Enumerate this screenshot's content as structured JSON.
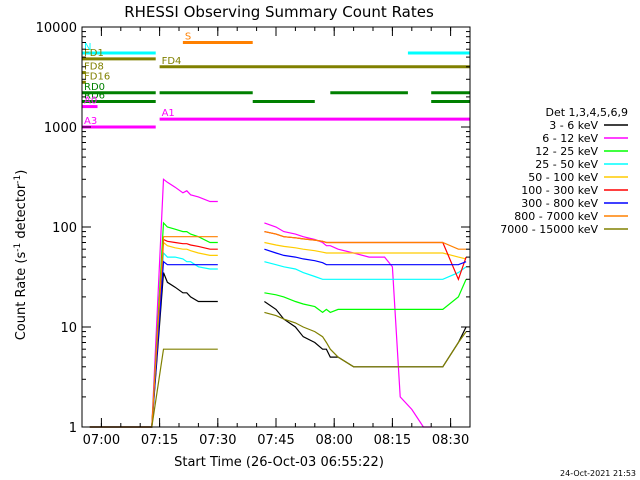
{
  "chart_data": {
    "type": "line",
    "title": "RHESSI Observing Summary Count Rates",
    "xlabel": "Start Time (26-Oct-03 06:55:22)",
    "ylabel_main": "Count Rate (s",
    "ylabel_sup1": "-1",
    "ylabel_mid": " detector",
    "ylabel_sup2": "-1",
    "ylabel_end": ")",
    "yscale": "log",
    "ylim": [
      1,
      10000
    ],
    "xlim_min": [
      0,
      100
    ],
    "x_tick_labels": [
      {
        "t": 5,
        "label": "07:00"
      },
      {
        "t": 20,
        "label": "07:15"
      },
      {
        "t": 35,
        "label": "07:30"
      },
      {
        "t": 50,
        "label": "07:45"
      },
      {
        "t": 65,
        "label": "08:00"
      },
      {
        "t": 80,
        "label": "08:15"
      },
      {
        "t": 95,
        "label": "08:30"
      }
    ],
    "y_tick_labels": [
      {
        "v": 1,
        "label": "1"
      },
      {
        "v": 10,
        "label": "10"
      },
      {
        "v": 100,
        "label": "100"
      },
      {
        "v": 1000,
        "label": "1000"
      },
      {
        "v": 10000,
        "label": "10000"
      }
    ],
    "legend_title": "Det 1,3,4,5,6,9",
    "legend_position": "right",
    "series": [
      {
        "name": "3 - 6 keV",
        "color": "#000000",
        "x": [
          2,
          5,
          9,
          10,
          11,
          12,
          13,
          15,
          18,
          21,
          22,
          24,
          26,
          27,
          28,
          30,
          33,
          35,
          40,
          45,
          47,
          50,
          52,
          55,
          57,
          60,
          62,
          63,
          64,
          66,
          70,
          74,
          78,
          80,
          82,
          85,
          88,
          90,
          93,
          97,
          99
        ],
        "y": [
          1,
          1,
          1,
          1,
          1,
          1,
          1,
          1,
          1,
          35,
          28,
          25,
          22,
          22,
          20,
          18,
          18,
          18,
          null,
          null,
          18,
          15,
          12,
          10,
          8,
          7,
          6,
          6,
          5,
          5,
          4,
          4,
          4,
          4,
          4,
          4,
          4,
          4,
          4,
          7,
          10
        ]
      },
      {
        "name": "6 - 12 keV",
        "color": "#ff00ff",
        "x": [
          2,
          5,
          9,
          10,
          11,
          12,
          13,
          15,
          18,
          21,
          22,
          24,
          26,
          27,
          28,
          30,
          33,
          35,
          40,
          45,
          47,
          50,
          52,
          55,
          57,
          60,
          62,
          63,
          64,
          66,
          70,
          74,
          78,
          80,
          82,
          85,
          88,
          90,
          93,
          97,
          99
        ],
        "y": [
          1,
          1,
          1,
          1,
          1,
          1,
          1,
          1,
          1,
          300,
          280,
          250,
          220,
          230,
          210,
          200,
          180,
          180,
          null,
          null,
          110,
          100,
          90,
          85,
          80,
          75,
          70,
          65,
          65,
          60,
          55,
          50,
          50,
          40,
          2,
          1.5,
          1,
          1,
          null,
          null,
          null
        ]
      },
      {
        "name": "12 - 25 keV",
        "color": "#00ff00",
        "x": [
          2,
          5,
          9,
          10,
          11,
          12,
          13,
          15,
          18,
          21,
          22,
          24,
          26,
          27,
          28,
          30,
          33,
          35,
          40,
          45,
          47,
          50,
          52,
          55,
          57,
          60,
          62,
          63,
          64,
          66,
          70,
          74,
          78,
          80,
          82,
          85,
          88,
          90,
          93,
          97,
          99
        ],
        "y": [
          1,
          1,
          1,
          1,
          1,
          1,
          1,
          1,
          1,
          110,
          100,
          95,
          90,
          90,
          85,
          80,
          70,
          70,
          null,
          null,
          22,
          21,
          20,
          18,
          17,
          16,
          14,
          15,
          14,
          15,
          15,
          15,
          15,
          15,
          15,
          15,
          15,
          15,
          15,
          20,
          30
        ]
      },
      {
        "name": "25 - 50 keV",
        "color": "#00ffff",
        "x": [
          2,
          5,
          9,
          10,
          11,
          12,
          13,
          15,
          18,
          21,
          22,
          24,
          26,
          27,
          28,
          30,
          33,
          35,
          40,
          45,
          47,
          50,
          52,
          55,
          57,
          60,
          62,
          63,
          64,
          66,
          70,
          74,
          78,
          80,
          82,
          85,
          88,
          90,
          93,
          97,
          99
        ],
        "y": [
          1,
          1,
          1,
          1,
          1,
          1,
          1,
          1,
          1,
          55,
          50,
          50,
          48,
          45,
          45,
          40,
          38,
          38,
          null,
          null,
          45,
          42,
          40,
          38,
          35,
          32,
          30,
          30,
          30,
          30,
          30,
          30,
          30,
          30,
          30,
          30,
          30,
          30,
          30,
          35,
          40
        ]
      },
      {
        "name": "50 - 100 keV",
        "color": "#ffcc00",
        "x": [
          2,
          5,
          9,
          10,
          11,
          12,
          13,
          15,
          18,
          21,
          22,
          24,
          26,
          27,
          28,
          30,
          33,
          35,
          40,
          45,
          47,
          50,
          52,
          55,
          57,
          60,
          62,
          63,
          64,
          66,
          70,
          74,
          78,
          80,
          82,
          85,
          88,
          90,
          93,
          97,
          99
        ],
        "y": [
          1,
          1,
          1,
          1,
          1,
          1,
          1,
          1,
          1,
          70,
          65,
          62,
          60,
          60,
          58,
          55,
          52,
          52,
          null,
          null,
          70,
          66,
          64,
          62,
          60,
          58,
          56,
          55,
          55,
          55,
          55,
          55,
          55,
          55,
          55,
          55,
          55,
          55,
          55,
          50,
          48
        ]
      },
      {
        "name": "100 - 300 keV",
        "color": "#ff0000",
        "x": [
          2,
          5,
          9,
          10,
          11,
          12,
          13,
          15,
          18,
          21,
          22,
          24,
          26,
          27,
          28,
          30,
          33,
          35,
          40,
          45,
          47,
          50,
          52,
          55,
          57,
          60,
          62,
          63,
          64,
          66,
          70,
          74,
          78,
          80,
          82,
          85,
          88,
          90,
          93,
          97,
          99
        ],
        "y": [
          1,
          1,
          1,
          1,
          1,
          1,
          1,
          1,
          1,
          75,
          72,
          70,
          68,
          68,
          66,
          64,
          60,
          60,
          null,
          null,
          90,
          85,
          80,
          78,
          76,
          74,
          72,
          70,
          70,
          70,
          70,
          70,
          70,
          70,
          70,
          70,
          70,
          70,
          70,
          30,
          50
        ]
      },
      {
        "name": "300 - 800 keV",
        "color": "#0000ff",
        "x": [
          2,
          5,
          9,
          10,
          11,
          12,
          13,
          15,
          18,
          21,
          22,
          24,
          26,
          27,
          28,
          30,
          33,
          35,
          40,
          45,
          47,
          50,
          52,
          55,
          57,
          60,
          62,
          63,
          64,
          66,
          70,
          74,
          78,
          80,
          82,
          85,
          88,
          90,
          93,
          97,
          99
        ],
        "y": [
          1,
          1,
          1,
          1,
          1,
          1,
          1,
          1,
          1,
          45,
          42,
          42,
          42,
          42,
          42,
          42,
          42,
          42,
          null,
          null,
          60,
          55,
          52,
          50,
          48,
          46,
          44,
          42,
          42,
          42,
          42,
          42,
          42,
          42,
          42,
          42,
          42,
          42,
          42,
          42,
          45
        ]
      },
      {
        "name": "800 - 7000 keV",
        "color": "#ff8000",
        "x": [
          2,
          5,
          9,
          10,
          11,
          12,
          13,
          15,
          18,
          21,
          22,
          24,
          26,
          27,
          28,
          30,
          33,
          35,
          40,
          45,
          47,
          50,
          52,
          55,
          57,
          60,
          62,
          63,
          64,
          66,
          70,
          74,
          78,
          80,
          82,
          85,
          88,
          90,
          93,
          97,
          99
        ],
        "y": [
          1,
          1,
          1,
          1,
          1,
          1,
          1,
          1,
          1,
          80,
          80,
          80,
          80,
          80,
          80,
          80,
          80,
          80,
          null,
          null,
          90,
          85,
          80,
          78,
          76,
          74,
          72,
          70,
          70,
          70,
          70,
          70,
          70,
          70,
          70,
          70,
          70,
          70,
          70,
          60,
          60
        ]
      },
      {
        "name": "7000 - 15000 keV",
        "color": "#808000",
        "x": [
          2,
          5,
          9,
          10,
          11,
          12,
          13,
          15,
          18,
          21,
          22,
          24,
          26,
          27,
          28,
          30,
          33,
          35,
          40,
          45,
          47,
          50,
          52,
          55,
          57,
          60,
          62,
          63,
          64,
          66,
          70,
          74,
          78,
          80,
          82,
          85,
          88,
          90,
          93,
          97,
          99
        ],
        "y": [
          1,
          1,
          1,
          1,
          1,
          1,
          1,
          1,
          1,
          6,
          6,
          6,
          6,
          6,
          6,
          6,
          6,
          6,
          null,
          null,
          14,
          13,
          12,
          11,
          10,
          9,
          8,
          7,
          6,
          5,
          4,
          4,
          4,
          4,
          4,
          4,
          4,
          4,
          4,
          7,
          9
        ]
      }
    ],
    "state_bars": [
      {
        "label": "N",
        "color": "#00ffff",
        "y": 5500,
        "segments": [
          [
            0,
            19
          ],
          [
            84,
            100
          ]
        ]
      },
      {
        "label": "S",
        "color": "#ff8000",
        "y": 7000,
        "segments": [
          [
            26,
            44
          ]
        ]
      },
      {
        "label": "FD1",
        "color": "#808000",
        "y": 4800,
        "segments": [
          [
            0,
            19
          ]
        ]
      },
      {
        "label": "FD4",
        "color": "#808000",
        "y": 4000,
        "segments": [
          [
            20,
            100
          ]
        ]
      },
      {
        "label": "FD8",
        "color": "#808000",
        "y": 3500,
        "segments": [
          [
            0,
            1
          ]
        ]
      },
      {
        "label": "FD16",
        "color": "#808000",
        "y": 2800,
        "segments": [
          [
            0,
            1
          ]
        ]
      },
      {
        "label": "RD0",
        "color": "#008000",
        "y": 2200,
        "segments": [
          [
            0,
            19
          ],
          [
            20,
            44
          ],
          [
            64,
            84
          ],
          [
            90,
            100
          ]
        ]
      },
      {
        "label": "RD6",
        "color": "#008000",
        "y": 1800,
        "segments": [
          [
            0,
            19
          ],
          [
            44,
            60
          ],
          [
            90,
            100
          ]
        ]
      },
      {
        "label": "A0",
        "color": "#ff00ff",
        "y": 1600,
        "segments": [
          [
            0,
            4
          ]
        ]
      },
      {
        "label": "A1",
        "color": "#ff00ff",
        "y": 1200,
        "segments": [
          [
            20,
            100
          ]
        ]
      },
      {
        "label": "A3",
        "color": "#ff00ff",
        "y": 1000,
        "segments": [
          [
            0,
            19
          ]
        ]
      }
    ],
    "timestamp": "24-Oct-2021 21:53"
  }
}
